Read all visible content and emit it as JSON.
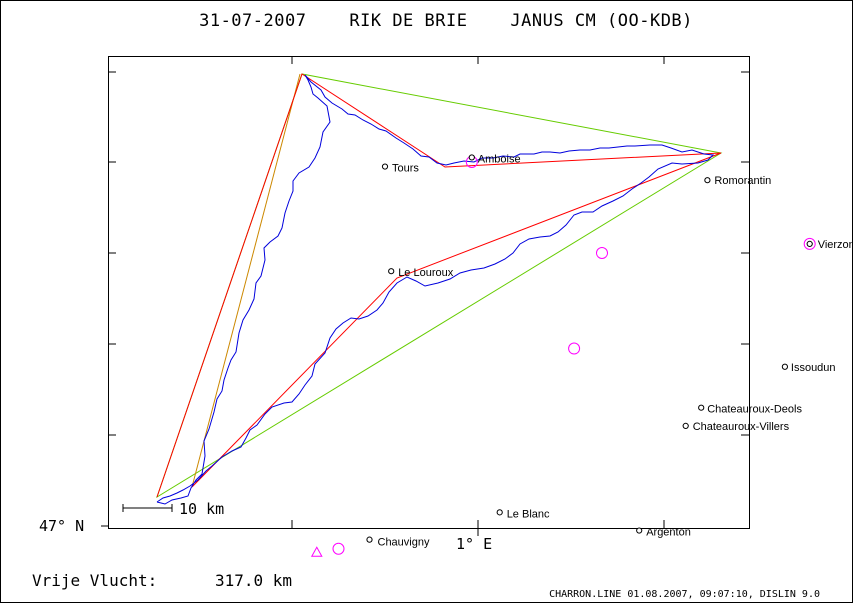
{
  "header": {
    "title": "31-07-2007    RIK DE BRIE    JANUS CM (OO-KDB)"
  },
  "map": {
    "towns": [
      {
        "name": "Amboise",
        "lon": 0.98,
        "lat": 47.41
      },
      {
        "name": "Romorantin",
        "lon": 1.74,
        "lat": 47.36
      },
      {
        "name": "Tours",
        "lon": 0.7,
        "lat": 47.39
      },
      {
        "name": "Vierzon",
        "lon": 2.07,
        "lat": 47.22
      },
      {
        "name": "Le Louroux",
        "lon": 0.72,
        "lat": 47.16
      },
      {
        "name": "Issoudun",
        "lon": 1.99,
        "lat": 46.95
      },
      {
        "name": "Chateauroux-Deols",
        "lon": 1.72,
        "lat": 46.86
      },
      {
        "name": "Chateauroux-Villers",
        "lon": 1.67,
        "lat": 46.82
      },
      {
        "name": "Le Blanc",
        "lon": 1.07,
        "lat": 46.63
      },
      {
        "name": "Argenton",
        "lon": 1.52,
        "lat": 46.59
      },
      {
        "name": "Chauvigny",
        "lon": 0.65,
        "lat": 46.57
      }
    ],
    "turnpoints": [
      {
        "lon": 0.48,
        "lat": 46.54
      },
      {
        "lon": 0.98,
        "lat": 47.4
      },
      {
        "lon": 1.4,
        "lat": 47.2
      },
      {
        "lon": 2.07,
        "lat": 47.22
      },
      {
        "lon": 1.31,
        "lat": 46.99
      },
      {
        "lon": 0.55,
        "lat": 46.55
      }
    ],
    "scale_label": "10 km",
    "y_axis_label": "47° N",
    "x_axis_label": "1° E",
    "colors": {
      "track": "#0000dd",
      "route": "#ff0000",
      "triangle": "#66cc00",
      "marker": "#ff00ff"
    }
  },
  "footer": {
    "distance_label": "Vrije Vlucht:",
    "distance_value": "317.0 km",
    "credit": "CHARRON.LINE 01.08.2007, 09:07:10, DISLIN 9.0"
  }
}
